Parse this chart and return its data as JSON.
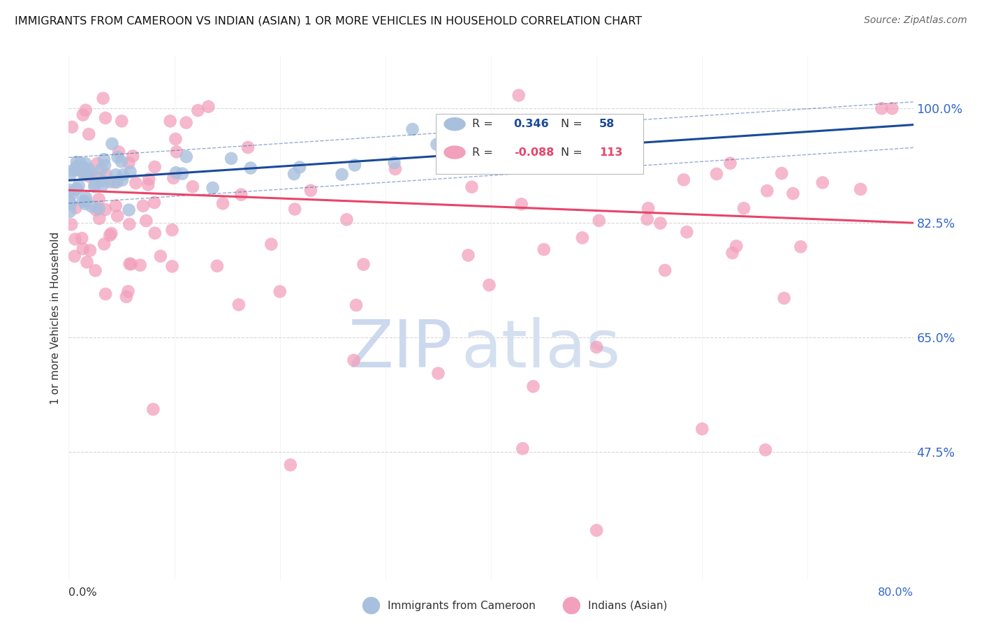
{
  "title": "IMMIGRANTS FROM CAMEROON VS INDIAN (ASIAN) 1 OR MORE VEHICLES IN HOUSEHOLD CORRELATION CHART",
  "source": "Source: ZipAtlas.com",
  "ylabel": "1 or more Vehicles in Household",
  "ytick_values": [
    1.0,
    0.825,
    0.65,
    0.475
  ],
  "xlim": [
    0.0,
    0.8
  ],
  "ylim": [
    0.28,
    1.08
  ],
  "legend_r_cameroon": "0.346",
  "legend_n_cameroon": "58",
  "legend_r_indian": "-0.088",
  "legend_n_indian": "113",
  "cameroon_color": "#a8c0de",
  "indian_color": "#f2a0bb",
  "trendline_cameroon_color": "#1a4a99",
  "trendline_indian_color": "#e8446a",
  "watermark_zip": "ZIP",
  "watermark_atlas": "atlas",
  "watermark_color": "#ccd8ee",
  "background_color": "#ffffff",
  "grid_color": "#cccccc",
  "cam_trend_x0": 0.0,
  "cam_trend_y0": 0.89,
  "cam_trend_x1": 0.8,
  "cam_trend_y1": 0.975,
  "ind_trend_x0": 0.0,
  "ind_trend_y0": 0.875,
  "ind_trend_x1": 0.8,
  "ind_trend_y1": 0.825
}
